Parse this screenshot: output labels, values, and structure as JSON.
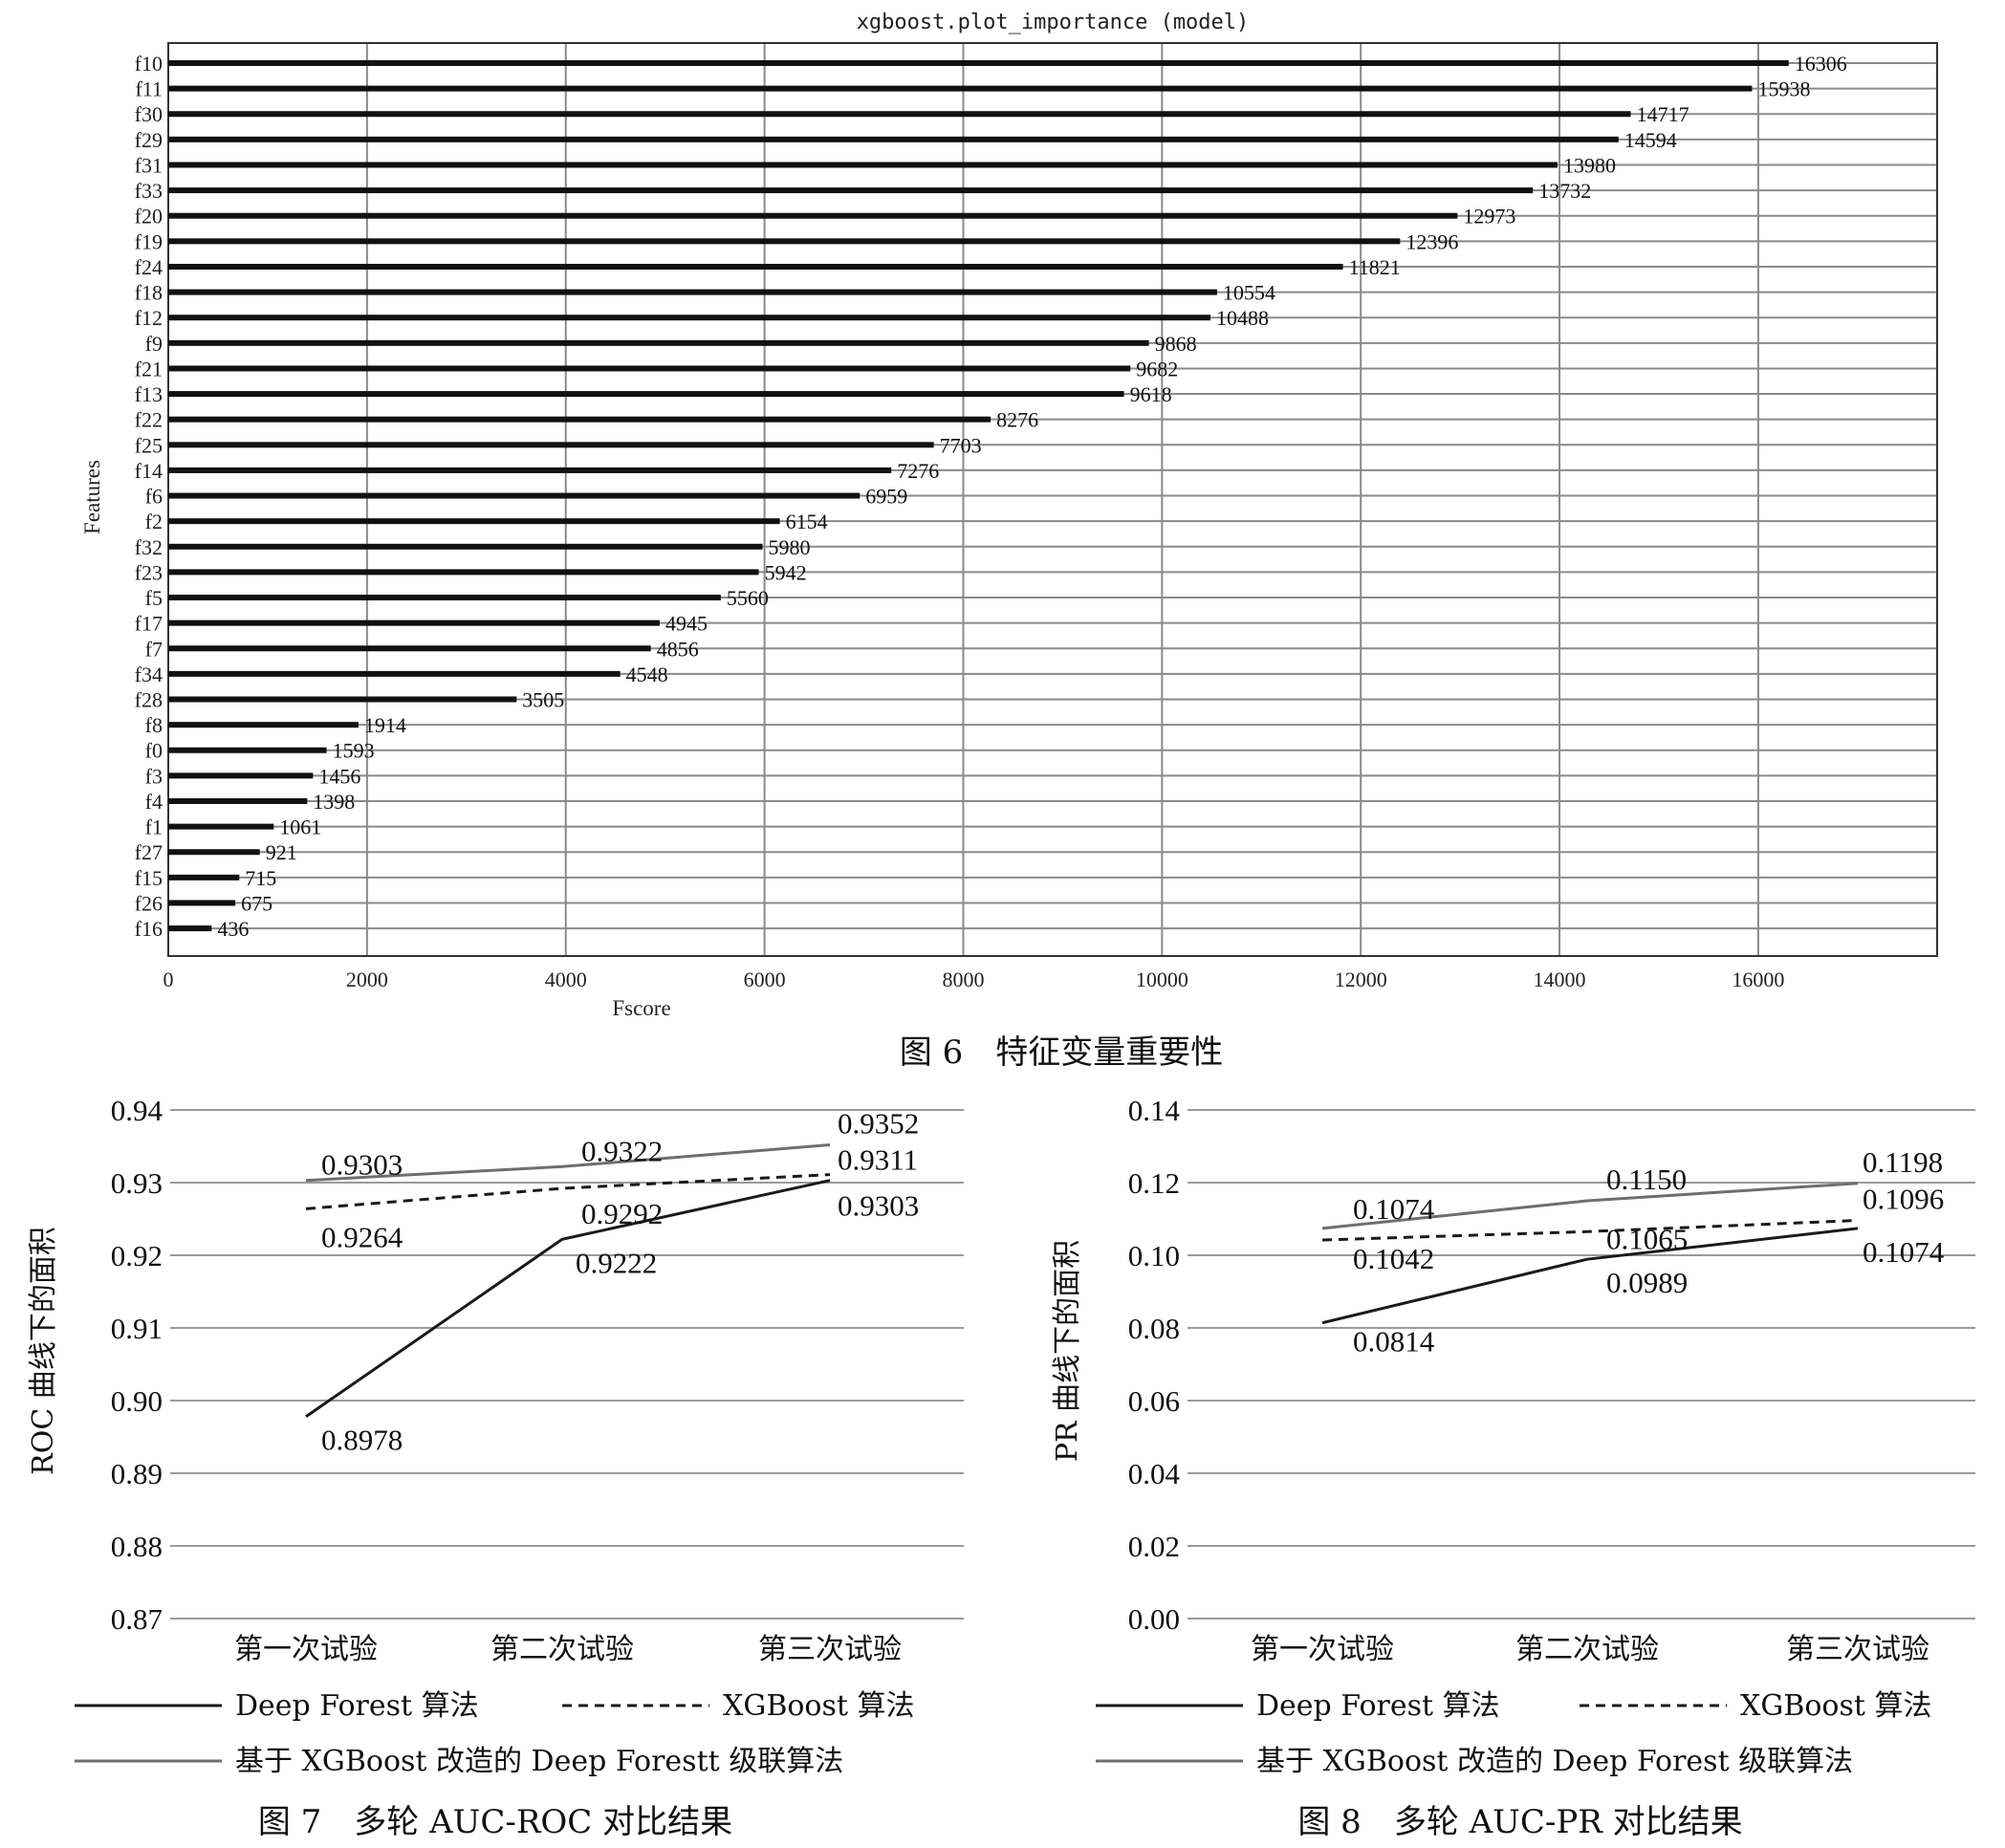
{
  "fig6": {
    "caption": "图 6　特征变量重要性",
    "chart_data": {
      "type": "bar",
      "orientation": "horizontal",
      "title": "xgboost.plot_importance (model)",
      "xlabel": "Fscore",
      "ylabel": "Features",
      "xlim": [
        0,
        17800
      ],
      "xticks": [
        0,
        2000,
        4000,
        6000,
        8000,
        10000,
        12000,
        14000,
        16000
      ],
      "grid": true,
      "categories": [
        "f10",
        "f11",
        "f30",
        "f29",
        "f31",
        "f33",
        "f20",
        "f19",
        "f24",
        "f18",
        "f12",
        "f9",
        "f21",
        "f13",
        "f22",
        "f25",
        "f14",
        "f6",
        "f2",
        "f32",
        "f23",
        "f5",
        "f17",
        "f7",
        "f34",
        "f28",
        "f8",
        "f0",
        "f3",
        "f4",
        "f1",
        "f27",
        "f15",
        "f26",
        "f16"
      ],
      "values": [
        16306,
        15938,
        14717,
        14594,
        13980,
        13732,
        12973,
        12396,
        11821,
        10554,
        10488,
        9868,
        9682,
        9618,
        8276,
        7703,
        7276,
        6959,
        6154,
        5980,
        5942,
        5560,
        4945,
        4856,
        4548,
        3505,
        1914,
        1593,
        1456,
        1398,
        1061,
        921,
        715,
        675,
        436
      ],
      "data_labels": [
        "16306",
        "15938",
        "14717",
        "14594",
        "13980",
        "13732",
        "12973",
        "12396",
        "11821",
        "10554",
        "10488",
        "9868",
        "9682",
        "9618",
        "8276",
        "7703",
        "7276",
        "6959",
        "6154",
        "5980",
        "5942",
        "5560",
        "4945",
        "4856",
        "4548",
        "3505",
        "1914",
        "1593",
        "1456",
        "1398",
        "1061",
        "921",
        "715",
        "675",
        "436"
      ]
    }
  },
  "fig7": {
    "caption": "图 7　多轮 AUC-ROC 对比结果",
    "chart_data": {
      "type": "line",
      "title": "",
      "xlabel": "",
      "ylabel": "ROC 曲线下的面积",
      "categories": [
        "第一次试验",
        "第二次试验",
        "第三次试验"
      ],
      "ylim": [
        0.87,
        0.94
      ],
      "yticks": [
        0.87,
        0.88,
        0.89,
        0.9,
        0.91,
        0.92,
        0.93,
        0.94
      ],
      "ytick_labels": [
        "0.87",
        "0.88",
        "0.89",
        "0.90",
        "0.91",
        "0.92",
        "0.93",
        "0.94"
      ],
      "grid": true,
      "legend_position": "bottom",
      "series": [
        {
          "name": "Deep Forest 算法",
          "values": [
            0.8978,
            0.9222,
            0.9303
          ],
          "labels": [
            "0.8978",
            "0.9222",
            "0.9303"
          ],
          "color": "#1a1a1a",
          "dash": "solid"
        },
        {
          "name": "XGBoost 算法",
          "values": [
            0.9264,
            0.9292,
            0.9311
          ],
          "labels": [
            "0.9264",
            "0.9292",
            "0.9311"
          ],
          "color": "#1a1a1a",
          "dash": "dashed"
        },
        {
          "name": "基于 XGBoost 改造的 Deep Forestt 级联算法",
          "values": [
            0.9303,
            0.9322,
            0.9352
          ],
          "labels": [
            "0.9303",
            "0.9322",
            "0.9352"
          ],
          "color": "#6e6e6e",
          "dash": "solid"
        }
      ]
    }
  },
  "fig8": {
    "caption": "图 8　多轮 AUC-PR 对比结果",
    "chart_data": {
      "type": "line",
      "title": "",
      "xlabel": "",
      "ylabel": "PR 曲线下的面积",
      "categories": [
        "第一次试验",
        "第二次试验",
        "第三次试验"
      ],
      "ylim": [
        0.0,
        0.14
      ],
      "yticks": [
        0.0,
        0.02,
        0.04,
        0.06,
        0.08,
        0.1,
        0.12,
        0.14
      ],
      "ytick_labels": [
        "0.00",
        "0.02",
        "0.04",
        "0.06",
        "0.08",
        "0.10",
        "0.12",
        "0.14"
      ],
      "grid": true,
      "legend_position": "bottom",
      "series": [
        {
          "name": "Deep Forest 算法",
          "values": [
            0.0814,
            0.0989,
            0.1074
          ],
          "labels": [
            "0.0814",
            "0.0989",
            "0.1074"
          ],
          "color": "#1a1a1a",
          "dash": "solid"
        },
        {
          "name": "XGBoost 算法",
          "values": [
            0.1042,
            0.1065,
            0.1096
          ],
          "labels": [
            "0.1042",
            "0.1065",
            "0.1096"
          ],
          "color": "#1a1a1a",
          "dash": "dashed"
        },
        {
          "name": "基于 XGBoost 改造的 Deep Forest 级联算法",
          "values": [
            0.1074,
            0.115,
            0.1198
          ],
          "labels": [
            "0.1074",
            "0.1150",
            "0.1198"
          ],
          "color": "#6e6e6e",
          "dash": "solid"
        }
      ]
    }
  }
}
